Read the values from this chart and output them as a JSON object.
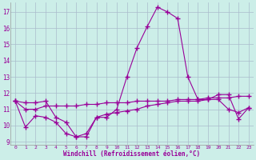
{
  "xlabel": "Windchill (Refroidissement éolien,°C)",
  "line1_x": [
    0,
    1,
    2,
    3,
    4,
    5,
    6,
    7,
    8,
    9,
    10,
    11,
    12,
    13,
    14,
    15,
    16,
    17,
    18,
    19,
    20,
    21,
    22,
    23
  ],
  "line1_y": [
    11.5,
    11.4,
    11.4,
    11.5,
    10.5,
    10.2,
    9.3,
    9.3,
    10.5,
    10.5,
    11.0,
    13.0,
    14.8,
    16.1,
    17.3,
    17.0,
    16.6,
    13.0,
    11.6,
    11.6,
    11.9,
    11.9,
    10.4,
    11.1
  ],
  "line2_x": [
    0,
    1,
    2,
    3,
    4,
    5,
    6,
    7,
    8,
    9,
    10,
    11,
    12,
    13,
    14,
    15,
    16,
    17,
    18,
    19,
    20,
    21,
    22,
    23
  ],
  "line2_y": [
    11.5,
    9.9,
    10.6,
    10.5,
    10.2,
    9.5,
    9.3,
    9.5,
    10.5,
    10.7,
    10.8,
    10.9,
    11.0,
    11.2,
    11.3,
    11.4,
    11.5,
    11.5,
    11.5,
    11.6,
    11.6,
    11.0,
    10.8,
    11.1
  ],
  "line3_x": [
    0,
    1,
    2,
    3,
    4,
    5,
    6,
    7,
    8,
    9,
    10,
    11,
    12,
    13,
    14,
    15,
    16,
    17,
    18,
    19,
    20,
    21,
    22,
    23
  ],
  "line3_y": [
    11.5,
    11.0,
    11.0,
    11.2,
    11.2,
    11.2,
    11.2,
    11.3,
    11.3,
    11.4,
    11.4,
    11.4,
    11.5,
    11.5,
    11.5,
    11.5,
    11.6,
    11.6,
    11.6,
    11.7,
    11.7,
    11.7,
    11.8,
    11.8
  ],
  "line_color": "#990099",
  "background_color": "#cceee8",
  "grid_color": "#aabbcc",
  "ylim": [
    8.8,
    17.6
  ],
  "yticks": [
    9,
    10,
    11,
    12,
    13,
    14,
    15,
    16,
    17
  ],
  "xticks": [
    0,
    1,
    2,
    3,
    4,
    5,
    6,
    7,
    8,
    9,
    10,
    11,
    12,
    13,
    14,
    15,
    16,
    17,
    18,
    19,
    20,
    21,
    22,
    23
  ],
  "marker": "+",
  "markersize": 4,
  "linewidth": 0.8
}
